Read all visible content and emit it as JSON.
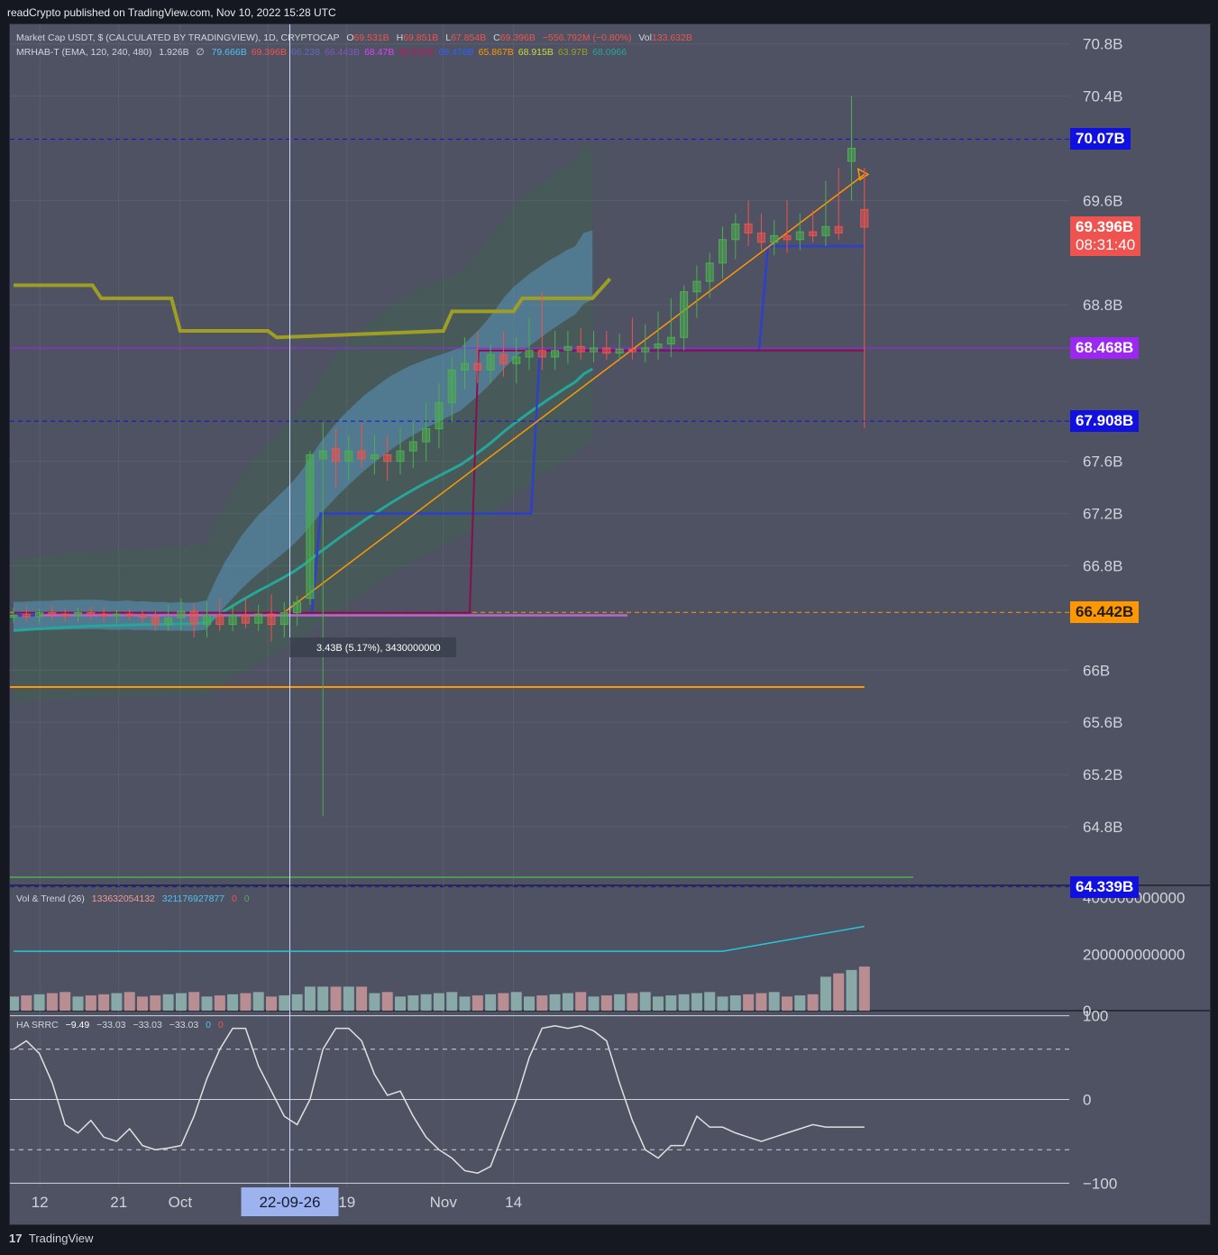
{
  "header": "readCrypto published on TradingView.com, Nov 10, 2022 15:28 UTC",
  "footer": {
    "logo": "17",
    "brand": "TradingView"
  },
  "legend_main": {
    "symbol": "Market Cap USDT, $ (CALCULATED BY TRADINGVIEW), 1D, CRYPTOCAP",
    "o_label": "O",
    "o": "69.531B",
    "h_label": "H",
    "h": "69.851B",
    "l_label": "L",
    "l": "67.854B",
    "c_label": "C",
    "c": "69.396B",
    "chg": "−556.792M (−0.80%)",
    "vol_label": "Vol",
    "vol": "133.632B"
  },
  "legend_ind": {
    "name": "MRHAB-T (EMA, 120, 240, 480)",
    "v1": "1.926B",
    "sym": "∅",
    "vals": [
      {
        "t": "79.666B",
        "c": "#4fc3f7"
      },
      {
        "t": "69.396B",
        "c": "#ef5350"
      },
      {
        "t": "66.238",
        "c": "#5c6bc0"
      },
      {
        "t": "66.443B",
        "c": "#7e57c2"
      },
      {
        "t": "68.47B",
        "c": "#e040fb"
      },
      {
        "t": "69.531B",
        "c": "#c2185b"
      },
      {
        "t": "69.476B",
        "c": "#2962ff"
      },
      {
        "t": "65.867B",
        "c": "#ff9800"
      },
      {
        "t": "68.915B",
        "c": "#cddc39"
      },
      {
        "t": "63.97B",
        "c": "#9e9d24"
      },
      {
        "t": "68.0966",
        "c": "#26a69a"
      }
    ]
  },
  "legend_vol": {
    "name": "Vol & Trend (26)",
    "v1": "133632054132",
    "v2": "321176927877",
    "v3": "0",
    "v4": "0"
  },
  "legend_ha": {
    "name": "HA SRRC",
    "v1": "−9.49",
    "v2": "−33.03",
    "v3": "−33.03",
    "v4": "−33.03",
    "v5": "0",
    "v6": "0"
  },
  "price_tags": [
    {
      "text": "70.07B",
      "bg": "#1010e0",
      "price": 70.07
    },
    {
      "text": "69.396B",
      "bg": "#ef5350",
      "price": 69.396,
      "sub": "08:31:40"
    },
    {
      "text": "68.468B",
      "bg": "#9c27f0",
      "price": 68.468
    },
    {
      "text": "67.908B",
      "bg": "#1010e0",
      "price": 67.908
    },
    {
      "text": "66.442B",
      "bg": "#ff9800",
      "price": 66.442,
      "dark": true
    },
    {
      "text": "64.339B",
      "bg": "#1010e0",
      "price": 64.339
    }
  ],
  "measure_label": "3.43B (5.17%), 3430000000",
  "crosshair_date": "22-09-26",
  "colors": {
    "up": "#4caf50",
    "down": "#ef5350",
    "bg": "#4e5262",
    "grid": "#5a5e6e",
    "text": "#d1d4dc"
  },
  "chart_data": [
    {
      "type": "candlestick",
      "title": "Market Cap USDT, $ (CALCULATED BY TRADINGVIEW), 1D, CRYPTOCAP",
      "y_unit": "B",
      "ylim": [
        64.35,
        70.95
      ],
      "y_ticks": [
        "70.8B",
        "70.4B",
        "69.6B",
        "68.8B",
        "67.6B",
        "67.2B",
        "66.8B",
        "66B",
        "65.6B",
        "65.2B",
        "64.8B"
      ],
      "y_tick_values": [
        70.8,
        70.4,
        69.6,
        68.8,
        67.6,
        67.2,
        66.8,
        66.0,
        65.6,
        65.2,
        64.8
      ],
      "x_ticks": [
        "12",
        "21",
        "Oct",
        "10",
        "19",
        "Nov",
        "14"
      ],
      "x_tick_days": [
        3,
        12,
        19,
        29,
        38,
        49,
        57
      ],
      "x_start": "2022-09-09",
      "candles": [
        {
          "o": 66.42,
          "h": 66.48,
          "l": 66.36,
          "c": 66.42
        },
        {
          "o": 66.43,
          "h": 66.49,
          "l": 66.37,
          "c": 66.41
        },
        {
          "o": 66.41,
          "h": 66.47,
          "l": 66.36,
          "c": 66.44
        },
        {
          "o": 66.44,
          "h": 66.5,
          "l": 66.38,
          "c": 66.43
        },
        {
          "o": 66.43,
          "h": 66.47,
          "l": 66.37,
          "c": 66.42
        },
        {
          "o": 66.42,
          "h": 66.48,
          "l": 66.37,
          "c": 66.44
        },
        {
          "o": 66.44,
          "h": 66.49,
          "l": 66.39,
          "c": 66.43
        },
        {
          "o": 66.43,
          "h": 66.48,
          "l": 66.37,
          "c": 66.42
        },
        {
          "o": 66.42,
          "h": 66.46,
          "l": 66.36,
          "c": 66.43
        },
        {
          "o": 66.43,
          "h": 66.47,
          "l": 66.38,
          "c": 66.42
        },
        {
          "o": 66.42,
          "h": 66.46,
          "l": 66.35,
          "c": 66.41
        },
        {
          "o": 66.41,
          "h": 66.45,
          "l": 66.3,
          "c": 66.35
        },
        {
          "o": 66.35,
          "h": 66.5,
          "l": 66.3,
          "c": 66.4
        },
        {
          "o": 66.4,
          "h": 66.55,
          "l": 66.3,
          "c": 66.45
        },
        {
          "o": 66.45,
          "h": 66.5,
          "l": 66.25,
          "c": 66.35
        },
        {
          "o": 66.35,
          "h": 66.52,
          "l": 66.25,
          "c": 66.42
        },
        {
          "o": 66.42,
          "h": 66.55,
          "l": 66.3,
          "c": 66.35
        },
        {
          "o": 66.35,
          "h": 66.5,
          "l": 66.3,
          "c": 66.42
        },
        {
          "o": 66.42,
          "h": 66.55,
          "l": 66.32,
          "c": 66.36
        },
        {
          "o": 66.36,
          "h": 66.5,
          "l": 66.3,
          "c": 66.43
        },
        {
          "o": 66.43,
          "h": 66.58,
          "l": 66.22,
          "c": 66.35
        },
        {
          "o": 66.35,
          "h": 66.52,
          "l": 66.25,
          "c": 66.44
        },
        {
          "o": 66.44,
          "h": 66.57,
          "l": 66.34,
          "c": 66.52
        },
        {
          "o": 66.55,
          "h": 67.68,
          "l": 66.5,
          "c": 67.65
        },
        {
          "o": 67.62,
          "h": 67.9,
          "l": 64.88,
          "c": 67.68
        },
        {
          "o": 67.7,
          "h": 67.85,
          "l": 67.4,
          "c": 67.6
        },
        {
          "o": 67.6,
          "h": 67.8,
          "l": 67.45,
          "c": 67.68
        },
        {
          "o": 67.68,
          "h": 67.9,
          "l": 67.55,
          "c": 67.62
        },
        {
          "o": 67.62,
          "h": 67.8,
          "l": 67.5,
          "c": 67.65
        },
        {
          "o": 67.65,
          "h": 67.8,
          "l": 67.45,
          "c": 67.6
        },
        {
          "o": 67.6,
          "h": 67.85,
          "l": 67.5,
          "c": 67.68
        },
        {
          "o": 67.68,
          "h": 67.9,
          "l": 67.55,
          "c": 67.75
        },
        {
          "o": 67.75,
          "h": 68.05,
          "l": 67.6,
          "c": 67.85
        },
        {
          "o": 67.85,
          "h": 68.2,
          "l": 67.7,
          "c": 68.05
        },
        {
          "o": 68.05,
          "h": 68.4,
          "l": 67.9,
          "c": 68.3
        },
        {
          "o": 68.3,
          "h": 68.55,
          "l": 68.15,
          "c": 68.35
        },
        {
          "o": 68.35,
          "h": 68.6,
          "l": 68.2,
          "c": 68.3
        },
        {
          "o": 68.3,
          "h": 68.5,
          "l": 68.2,
          "c": 68.42
        },
        {
          "o": 68.42,
          "h": 68.6,
          "l": 68.25,
          "c": 68.35
        },
        {
          "o": 68.35,
          "h": 68.55,
          "l": 68.2,
          "c": 68.4
        },
        {
          "o": 68.4,
          "h": 68.7,
          "l": 68.3,
          "c": 68.45
        },
        {
          "o": 68.45,
          "h": 68.9,
          "l": 68.3,
          "c": 68.4
        },
        {
          "o": 68.4,
          "h": 68.6,
          "l": 68.3,
          "c": 68.45
        },
        {
          "o": 68.45,
          "h": 68.6,
          "l": 68.35,
          "c": 68.48
        },
        {
          "o": 68.48,
          "h": 68.62,
          "l": 68.38,
          "c": 68.44
        },
        {
          "o": 68.44,
          "h": 68.6,
          "l": 68.36,
          "c": 68.47
        },
        {
          "o": 68.47,
          "h": 68.6,
          "l": 68.38,
          "c": 68.43
        },
        {
          "o": 68.43,
          "h": 68.58,
          "l": 68.37,
          "c": 68.46
        },
        {
          "o": 68.46,
          "h": 68.7,
          "l": 68.38,
          "c": 68.44
        },
        {
          "o": 68.44,
          "h": 68.65,
          "l": 68.36,
          "c": 68.47
        },
        {
          "o": 68.47,
          "h": 68.75,
          "l": 68.38,
          "c": 68.5
        },
        {
          "o": 68.5,
          "h": 68.85,
          "l": 68.4,
          "c": 68.55
        },
        {
          "o": 68.55,
          "h": 68.95,
          "l": 68.45,
          "c": 68.9
        },
        {
          "o": 68.9,
          "h": 69.1,
          "l": 68.7,
          "c": 68.98
        },
        {
          "o": 68.98,
          "h": 69.2,
          "l": 68.85,
          "c": 69.12
        },
        {
          "o": 69.12,
          "h": 69.4,
          "l": 69.0,
          "c": 69.3
        },
        {
          "o": 69.3,
          "h": 69.5,
          "l": 69.15,
          "c": 69.42
        },
        {
          "o": 69.42,
          "h": 69.6,
          "l": 69.25,
          "c": 69.35
        },
        {
          "o": 69.35,
          "h": 69.5,
          "l": 69.22,
          "c": 69.28
        },
        {
          "o": 69.28,
          "h": 69.45,
          "l": 69.18,
          "c": 69.33
        },
        {
          "o": 69.33,
          "h": 69.6,
          "l": 69.2,
          "c": 69.3
        },
        {
          "o": 69.3,
          "h": 69.5,
          "l": 69.22,
          "c": 69.36
        },
        {
          "o": 69.36,
          "h": 69.52,
          "l": 69.28,
          "c": 69.33
        },
        {
          "o": 69.33,
          "h": 69.75,
          "l": 69.25,
          "c": 69.4
        },
        {
          "o": 69.4,
          "h": 69.85,
          "l": 69.3,
          "c": 69.35
        },
        {
          "o": 69.9,
          "h": 70.4,
          "l": 69.6,
          "c": 70.0
        },
        {
          "o": 69.531,
          "h": 69.851,
          "l": 67.854,
          "c": 69.396
        }
      ]
    },
    {
      "type": "bar",
      "title": "Vol & Trend (26)",
      "ylim": [
        0,
        440000000000
      ],
      "y_ticks": [
        "400000000000",
        "200000000000",
        "0"
      ],
      "y_tick_values": [
        400000000000,
        200000000000,
        0
      ]
    },
    {
      "type": "line",
      "title": "HA SRRC",
      "ylim": [
        -105,
        105
      ],
      "y_ticks": [
        "100",
        "0",
        "−100"
      ],
      "y_tick_values": [
        100,
        0,
        -100
      ]
    }
  ]
}
